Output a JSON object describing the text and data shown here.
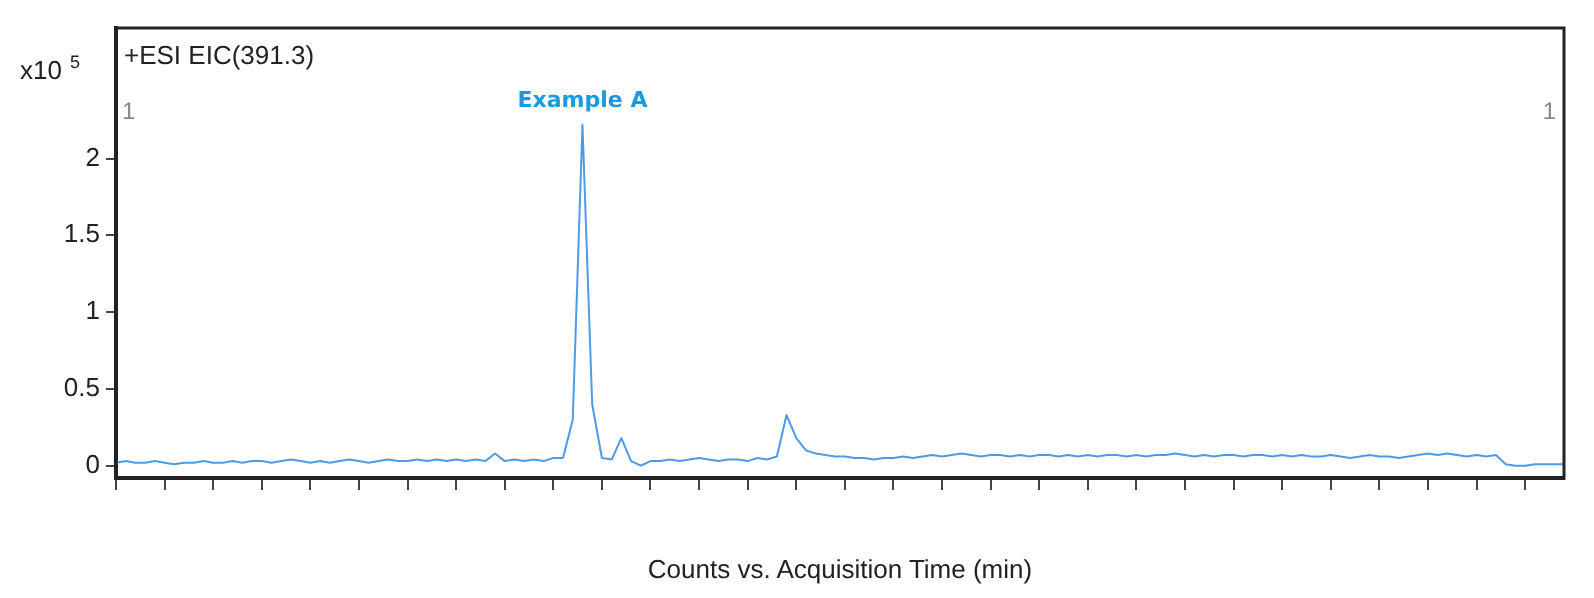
{
  "chart_data": {
    "type": "line",
    "ylabel": "x10$^{5}$",
    "xlabel": "Counts vs. Acquisition Time (min)",
    "categories": [
      null,
      null,
      null,
      null,
      null,
      null,
      null,
      null,
      null,
      null,
      null,
      null,
      null,
      null,
      null,
      null,
      null,
      null,
      null,
      null,
      null,
      null,
      null,
      null,
      null,
      null,
      null,
      null,
      null,
      null,
      null,
      null,
      null,
      null,
      null,
      null,
      null,
      null,
      null,
      null,
      null,
      null,
      null,
      null,
      null,
      null,
      null,
      null,
      null,
      null,
      null,
      null,
      null,
      null,
      null,
      null,
      null,
      null,
      null,
      null,
      null,
      null,
      null,
      null,
      null,
      null,
      null,
      null,
      null,
      null,
      null,
      null,
      null,
      null,
      null,
      null,
      null,
      null,
      null,
      null,
      null,
      null,
      null,
      null,
      null,
      null,
      null,
      null,
      null,
      null,
      null,
      null,
      null,
      null,
      null,
      null,
      null,
      null,
      null,
      null,
      null,
      null,
      null,
      null,
      null,
      null,
      null,
      null,
      null,
      null,
      null,
      null,
      null,
      null,
      null,
      null,
      null,
      null,
      null,
      null,
      null,
      null,
      null,
      null,
      null,
      null,
      null,
      null,
      null,
      null,
      null,
      null,
      null,
      null,
      null,
      null,
      null,
      null,
      null,
      null,
      null,
      null,
      null,
      null,
      null,
      null,
      null,
      null,
      null,
      null
    ],
    "series": [
      {
        "color": "#4d9be6",
        "values": [
          0.02,
          0.03,
          0.02,
          0.02,
          0.03,
          0.02,
          0.01,
          0.02,
          0.02,
          0.03,
          0.02,
          0.02,
          0.03,
          0.02,
          0.03,
          0.03,
          0.02,
          0.03,
          0.04,
          0.03,
          0.02,
          0.03,
          0.02,
          0.03,
          0.04,
          0.03,
          0.02,
          0.03,
          0.04,
          0.03,
          0.03,
          0.04,
          0.03,
          0.04,
          0.03,
          0.04,
          0.03,
          0.04,
          0.03,
          0.08,
          0.03,
          0.04,
          0.03,
          0.04,
          0.03,
          0.05,
          0.05,
          0.3,
          2.22,
          0.4,
          0.05,
          0.04,
          0.18,
          0.03,
          0.0,
          0.03,
          0.03,
          0.04,
          0.03,
          0.04,
          0.05,
          0.04,
          0.03,
          0.04,
          0.04,
          0.03,
          0.05,
          0.04,
          0.06,
          0.33,
          0.18,
          0.1,
          0.08,
          0.07,
          0.06,
          0.06,
          0.05,
          0.05,
          0.04,
          0.05,
          0.05,
          0.06,
          0.05,
          0.06,
          0.07,
          0.06,
          0.07,
          0.08,
          0.07,
          0.06,
          0.07,
          0.07,
          0.06,
          0.07,
          0.06,
          0.07,
          0.07,
          0.06,
          0.07,
          0.06,
          0.07,
          0.06,
          0.07,
          0.07,
          0.06,
          0.07,
          0.06,
          0.07,
          0.07,
          0.08,
          0.07,
          0.06,
          0.07,
          0.06,
          0.07,
          0.07,
          0.06,
          0.07,
          0.07,
          0.06,
          0.07,
          0.06,
          0.07,
          0.06,
          0.06,
          0.07,
          0.06,
          0.05,
          0.06,
          0.07,
          0.06,
          0.06,
          0.05,
          0.06,
          0.07,
          0.08,
          0.07,
          0.08,
          0.07,
          0.06,
          0.07,
          0.06,
          0.07,
          0.01,
          0.0,
          0.0,
          0.01,
          0.01,
          0.01,
          0.01
        ]
      }
    ],
    "ylim": [
      -0.08,
      2.85
    ],
    "yticks": [
      0,
      0.5,
      1,
      1.5,
      2
    ],
    "grid": false,
    "legend": false,
    "annotations": [
      "+ESI EIC(391.3)",
      "1",
      "1",
      {
        "text": "Example A",
        "y": 2.22
      }
    ]
  }
}
